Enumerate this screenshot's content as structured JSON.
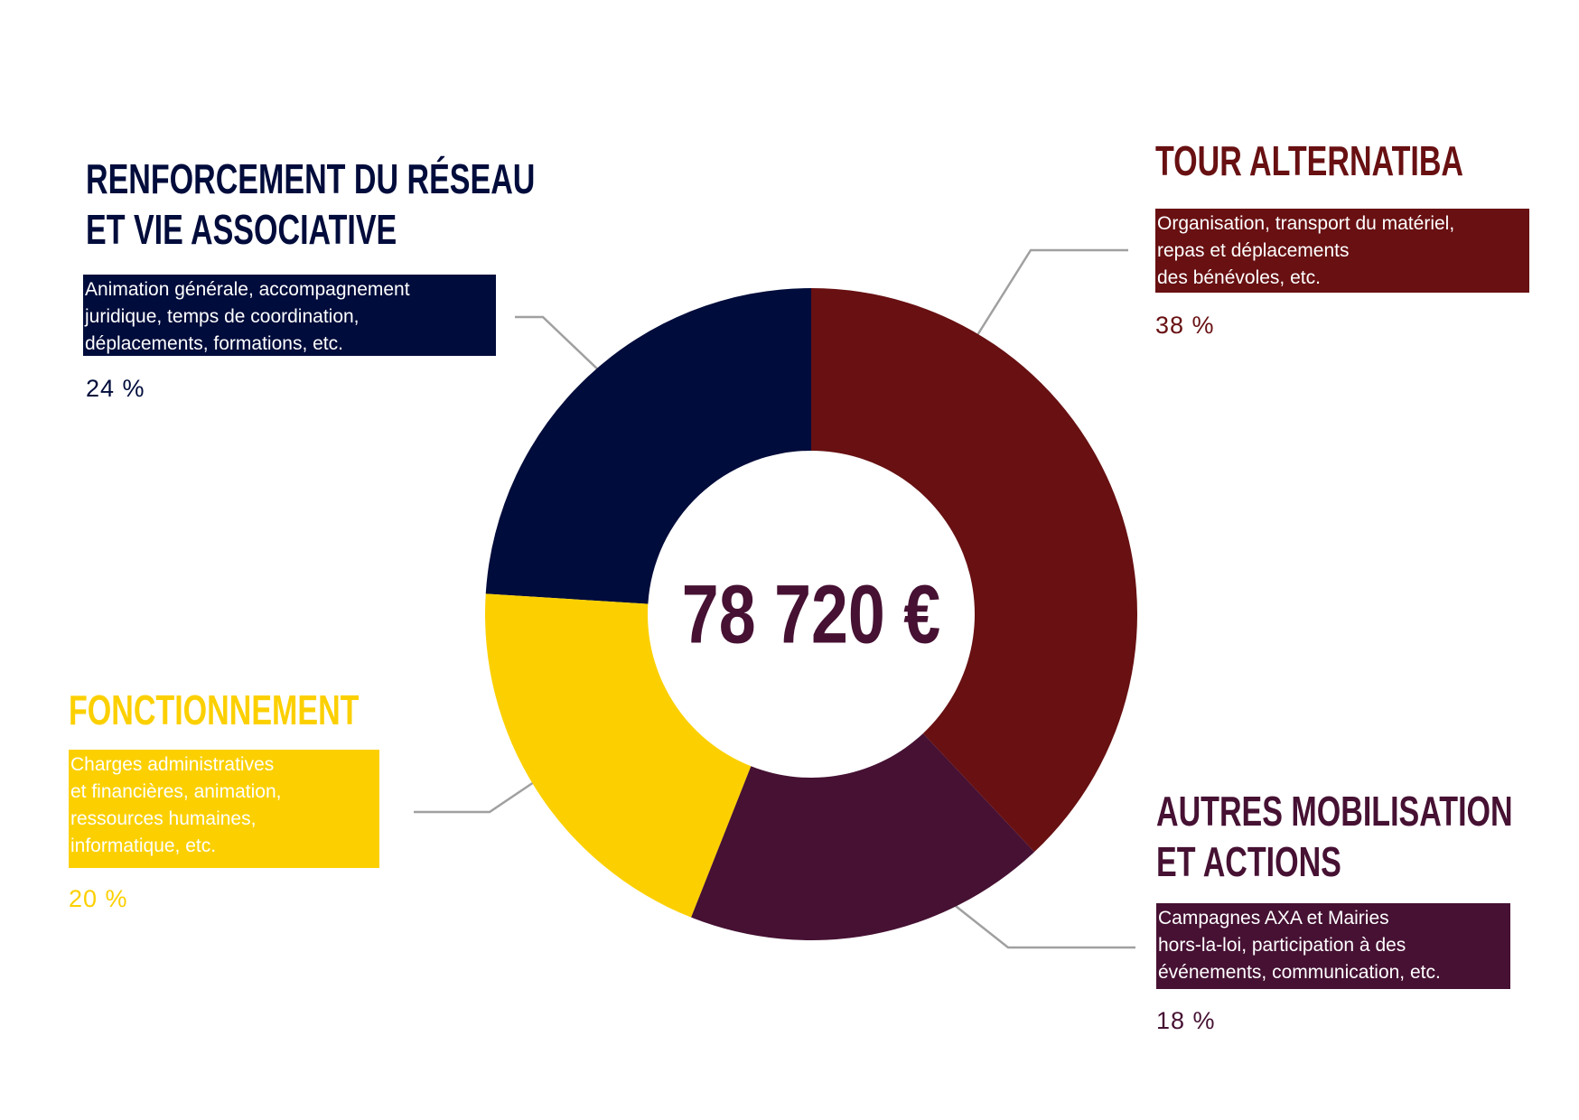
{
  "chart_data": {
    "type": "pie",
    "center_label": "78 720 €",
    "categories": [
      "TOUR ALTERNATIBA",
      "AUTRES MOBILISATION\nET ACTIONS",
      "FONCTIONNEMENT",
      "RENFORCEMENT DU RÉSEAU\nET VIE ASSOCIATIVE"
    ],
    "descriptions": [
      "Organisation, transport du matériel,\nrepas et déplacements\ndes bénévoles, etc.",
      "Campagnes AXA et Mairies\nhors-la-loi, participation à des\névénements, communication, etc.",
      "Charges administratives\net financières, animation,\nressources humaines,\ninformatique, etc.",
      "Animation générale, accompagnement\njuridique, temps de coordination,\ndéplacements, formations, etc."
    ],
    "values": [
      38,
      18,
      20,
      24
    ],
    "value_labels": [
      "38 %",
      "18 %",
      "20 %",
      "24 %"
    ],
    "colors": [
      "#681012",
      "#461133",
      "#fcd000",
      "#000c3b"
    ]
  }
}
